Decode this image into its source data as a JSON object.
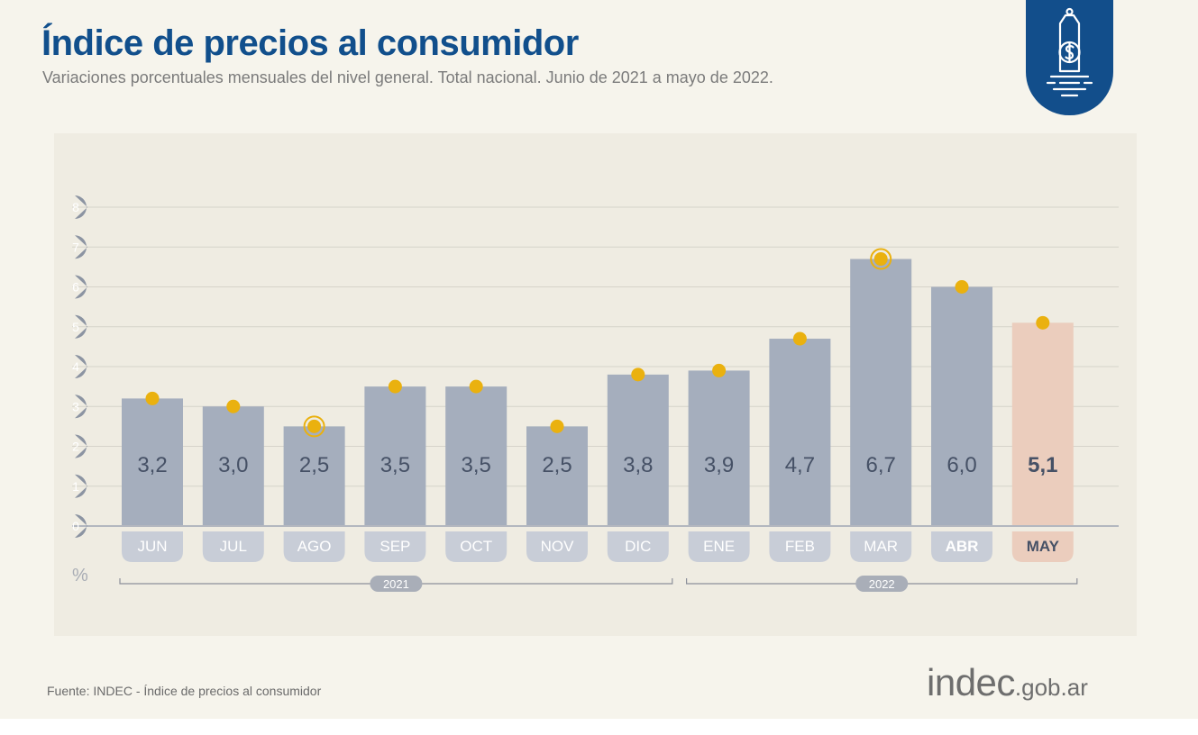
{
  "header": {
    "title": "Índice de precios al consumidor",
    "subtitle": "Variaciones porcentuales mensuales del nivel general. Total nacional. Junio de 2021 a mayo de 2022."
  },
  "badge_icon": "price-tag-dollar-icon",
  "chart_data": {
    "type": "bar",
    "title": "Índice de precios al consumidor",
    "ylabel": "%",
    "xlabel": "",
    "ylim": [
      0,
      8
    ],
    "yticks": [
      0,
      1,
      2,
      3,
      4,
      5,
      6,
      7,
      8
    ],
    "grid": true,
    "categories": [
      "JUN",
      "JUL",
      "AGO",
      "SEP",
      "OCT",
      "NOV",
      "DIC",
      "ENE",
      "FEB",
      "MAR",
      "ABR",
      "MAY"
    ],
    "values": [
      3.2,
      3.0,
      2.5,
      3.5,
      3.5,
      2.5,
      3.8,
      3.9,
      4.7,
      6.7,
      6.0,
      5.1
    ],
    "value_labels": [
      "3,2",
      "3,0",
      "2,5",
      "3,5",
      "3,5",
      "2,5",
      "3,8",
      "3,9",
      "4,7",
      "6,7",
      "6,0",
      "5,1"
    ],
    "highlight_markers": [
      "AGO",
      "MAR"
    ],
    "highlight_category": "MAY",
    "year_groups": [
      {
        "label": "2021",
        "from": "JUN",
        "to": "DIC"
      },
      {
        "label": "2022",
        "from": "ENE",
        "to": "MAY"
      }
    ],
    "colors": {
      "bar": "#a5aebd",
      "bar_highlight": "#ebcdbd",
      "marker": "#eab10f",
      "label": "#465166",
      "axis_badge": "#8c94a2",
      "tick_label_bg": "#c8cdd7",
      "tick_label_text": "#ffffff"
    }
  },
  "footer": {
    "source": "Fuente: INDEC - Índice de precios al consumidor",
    "logo_main": "indec",
    "logo_domain": ".gob.ar"
  }
}
